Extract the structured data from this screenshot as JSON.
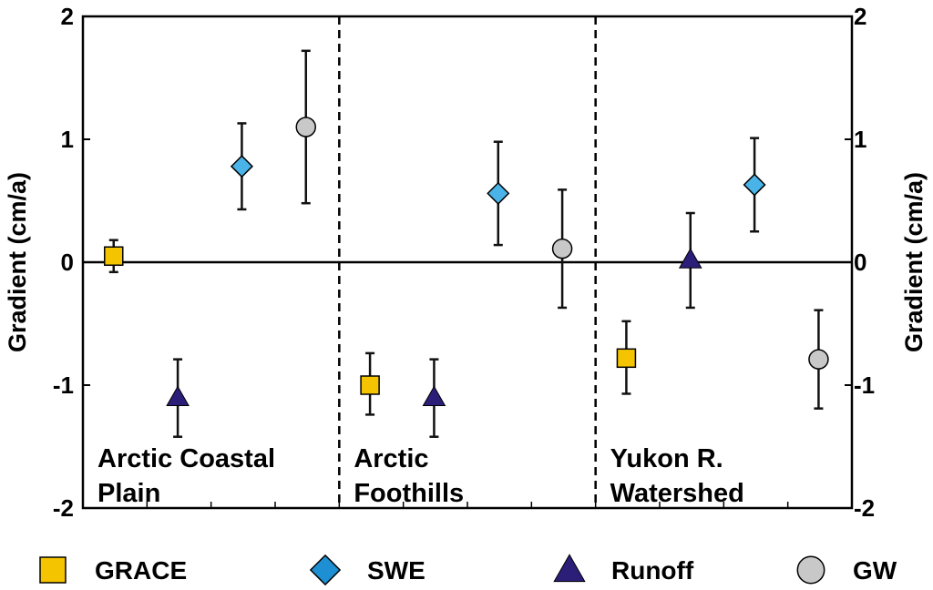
{
  "chart_data": {
    "type": "scatter",
    "ylabel": "Gradient (cm/a)",
    "ylabel_right": "Gradient (cm/a)",
    "ylim": [
      -2,
      2
    ],
    "yticks": [
      "2",
      "1",
      "0",
      "-1",
      "-2"
    ],
    "grid": false,
    "legend_position": "bottom",
    "regions": [
      {
        "name": "Arctic Coastal Plain",
        "lines": [
          "Arctic Coastal",
          "Plain"
        ]
      },
      {
        "name": "Arctic Foothills",
        "lines": [
          "Arctic",
          "Foothills"
        ]
      },
      {
        "name": "Yukon R. Watershed",
        "lines": [
          "Yukon R.",
          "Watershed"
        ]
      }
    ],
    "series": [
      {
        "name": "GRACE",
        "marker": "square",
        "color": "#F5C400",
        "values": [
          0.05,
          -1.0,
          -0.78
        ],
        "err_low": [
          -0.08,
          -1.24,
          -1.07
        ],
        "err_high": [
          0.18,
          -0.74,
          -0.48
        ]
      },
      {
        "name": "Runoff",
        "marker": "triangle",
        "color": "#2A1E78",
        "values": [
          -1.1,
          -1.1,
          0.02
        ],
        "err_low": [
          -1.42,
          -1.42,
          -0.37
        ],
        "err_high": [
          -0.79,
          -0.79,
          0.4
        ]
      },
      {
        "name": "SWE",
        "marker": "diamond",
        "color": "#4AB3E8",
        "values": [
          0.78,
          0.56,
          0.63
        ],
        "err_low": [
          0.43,
          0.14,
          0.25
        ],
        "err_high": [
          1.13,
          0.98,
          1.01
        ]
      },
      {
        "name": "GW",
        "marker": "circle",
        "color": "#C8C8C8",
        "values": [
          1.1,
          0.11,
          -0.79
        ],
        "err_low": [
          0.48,
          -0.37,
          -1.19
        ],
        "err_high": [
          1.72,
          0.59,
          -0.39
        ]
      }
    ],
    "legend": [
      {
        "label": "GRACE",
        "marker": "square",
        "color": "#F5C400"
      },
      {
        "label": "SWE",
        "marker": "diamond",
        "color": "#1E8FD2"
      },
      {
        "label": "Runoff",
        "marker": "triangle",
        "color": "#2A1E78"
      },
      {
        "label": "GW",
        "marker": "circle",
        "color": "#C8C8C8"
      }
    ]
  }
}
